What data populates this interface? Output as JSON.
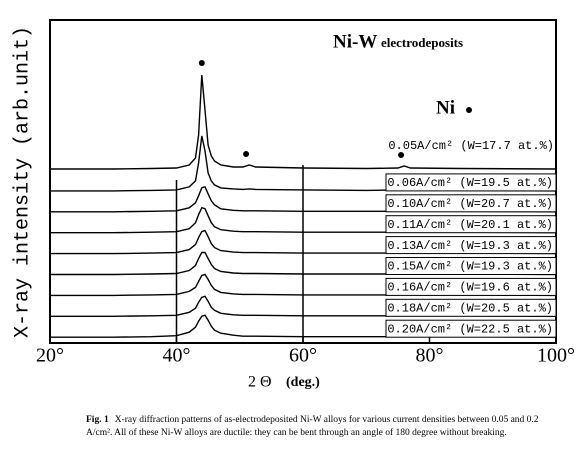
{
  "chart_data": {
    "type": "line",
    "title_main": "Ni-W",
    "title_sub": "electrodeposits",
    "legend_label": "Ni",
    "y_label": "X-ray intensity (arb.unit)",
    "x_label_symbol": "2 Θ",
    "x_label_unit": "(deg.)",
    "xlim": [
      20,
      100
    ],
    "xticks": [
      {
        "value": 20,
        "label": "20°"
      },
      {
        "value": 40,
        "label": "40°"
      },
      {
        "value": 60,
        "label": "60°"
      },
      {
        "value": 80,
        "label": "80°"
      },
      {
        "value": 100,
        "label": "100°"
      }
    ],
    "ylim": [
      0,
      100
    ],
    "ni_peaks": [
      44,
      51,
      75.5
    ],
    "x": [
      20,
      30,
      36,
      40,
      42,
      43,
      43.5,
      44,
      44.5,
      45,
      45.5,
      46,
      47,
      49,
      50.5,
      51.5,
      52.5,
      60,
      70,
      75,
      76,
      77,
      85,
      100
    ],
    "series": [
      {
        "name": "0.05A/cm² (W=17.7 at.%)",
        "color": "#000000",
        "values": [
          1,
          1,
          1.5,
          2,
          5,
          12,
          35,
          95,
          60,
          25,
          14,
          9,
          5,
          3,
          3,
          5,
          3,
          2,
          1.5,
          2,
          4,
          2,
          1.5,
          1
        ]
      },
      {
        "name": "0.06A/cm² (W=19.5 at.%)",
        "color": "#000000",
        "values": [
          0,
          0,
          0.5,
          1,
          4,
          10,
          28,
          55,
          40,
          18,
          10,
          6,
          3,
          2,
          1.5,
          2,
          1.5,
          1,
          0.5,
          1,
          1.5,
          1,
          0.5,
          0
        ]
      },
      {
        "name": "0.10A/cm² (W=20.7 at.%)",
        "color": "#000000",
        "values": [
          0,
          0,
          0.5,
          1,
          4,
          9,
          16,
          24,
          25,
          18,
          11,
          7,
          3,
          1.5,
          1,
          1,
          1,
          0.5,
          0.5,
          0.5,
          1,
          0.5,
          0.5,
          0
        ]
      },
      {
        "name": "0.11A/cm² (W=20.1 at.%)",
        "color": "#000000",
        "values": [
          0,
          0,
          0.5,
          1,
          4,
          10,
          18,
          25,
          24,
          17,
          10,
          6,
          3,
          1.5,
          1,
          1,
          1,
          0.5,
          0.5,
          0.5,
          1,
          0.5,
          0.5,
          0
        ]
      },
      {
        "name": "0.13A/cm² (W=19.3 at.%)",
        "color": "#000000",
        "values": [
          0,
          0,
          0.5,
          1,
          4,
          9,
          16,
          22,
          23,
          17,
          10,
          6,
          3,
          1.5,
          1,
          1,
          1,
          0.5,
          0.5,
          0.5,
          1,
          0.5,
          0.5,
          0
        ]
      },
      {
        "name": "0.15A/cm² (W=19.3 at.%)",
        "color": "#000000",
        "values": [
          0,
          0,
          0.5,
          1,
          4,
          9,
          16,
          22,
          22,
          16,
          10,
          6,
          3,
          1.5,
          1,
          1,
          1,
          0.5,
          0.5,
          0.5,
          1,
          0.5,
          0.5,
          0
        ]
      },
      {
        "name": "0.16A/cm² (W=19.6 at.%)",
        "color": "#000000",
        "values": [
          0,
          0,
          0.5,
          1,
          4,
          8,
          14,
          20,
          21,
          16,
          10,
          6,
          3,
          1.5,
          1,
          1,
          1,
          0.5,
          0.5,
          0.5,
          1,
          0.5,
          0.5,
          0
        ]
      },
      {
        "name": "0.18A/cm² (W=20.5 at.%)",
        "color": "#000000",
        "values": [
          0,
          0,
          0.5,
          1,
          4,
          8,
          14,
          19,
          20,
          15,
          9,
          6,
          3,
          1.5,
          1,
          1,
          1,
          0.5,
          0.5,
          0.5,
          1,
          0.5,
          0.5,
          0
        ]
      },
      {
        "name": "0.20A/cm² (W=22.5 at.%)",
        "color": "#000000",
        "values": [
          0,
          0,
          0.5,
          1.5,
          5,
          10,
          16,
          21,
          22,
          17,
          11,
          7,
          4,
          2,
          1,
          1,
          1,
          0.5,
          0.5,
          0.5,
          1,
          0.5,
          0.5,
          0
        ]
      }
    ]
  },
  "caption": {
    "label": "Fig. 1",
    "text": "X-ray diffraction patterns of as-electrodeposited Ni-W alloys for various current densities between 0.05 and 0.2 A/cm². All of these Ni-W alloys are ductile: they can be bent through an angle of 180 degree without breaking."
  }
}
